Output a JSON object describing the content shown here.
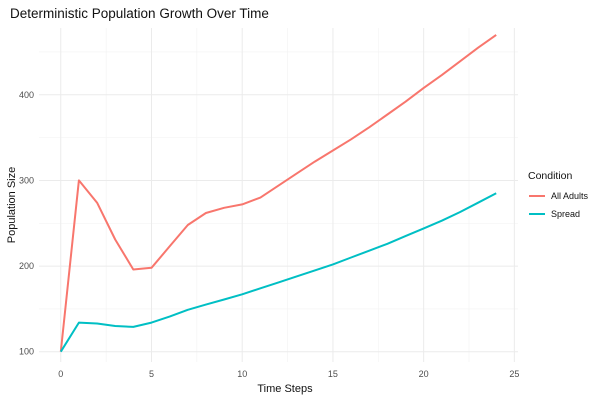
{
  "chart_data": {
    "type": "line",
    "title": "Deterministic Population Growth Over Time",
    "xlabel": "Time Steps",
    "ylabel": "Population Size",
    "xlim": [
      -1.2,
      25.2
    ],
    "ylim": [
      88,
      478
    ],
    "x_ticks": [
      0,
      5,
      10,
      15,
      20,
      25
    ],
    "y_ticks": [
      100,
      200,
      300,
      400
    ],
    "grid": true,
    "legend": {
      "title": "Condition",
      "position": "right"
    },
    "x": [
      0,
      1,
      2,
      3,
      4,
      5,
      6,
      7,
      8,
      9,
      10,
      11,
      12,
      13,
      14,
      15,
      16,
      17,
      18,
      19,
      20,
      21,
      22,
      23,
      24
    ],
    "series": [
      {
        "name": "All Adults",
        "color": "#F8766D",
        "values": [
          100,
          300,
          274,
          231,
          196,
          198,
          223,
          248,
          262,
          268,
          272,
          280,
          294,
          308,
          322,
          335,
          348,
          362,
          377,
          392,
          408,
          423,
          439,
          455,
          470
        ]
      },
      {
        "name": "Spread",
        "color": "#00BFC4",
        "values": [
          100,
          134,
          133,
          130,
          129,
          134,
          141,
          149,
          155,
          161,
          167,
          174,
          181,
          188,
          195,
          202,
          210,
          218,
          226,
          235,
          244,
          253,
          263,
          274,
          285
        ]
      }
    ]
  }
}
